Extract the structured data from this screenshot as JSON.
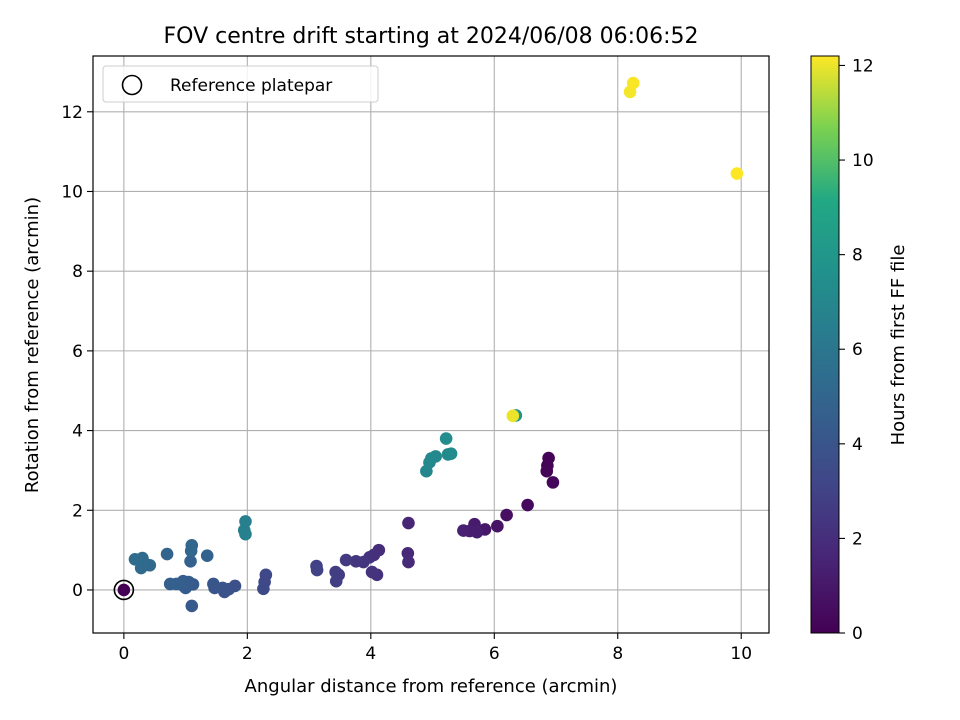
{
  "chart_data": {
    "type": "scatter",
    "title": "FOV centre drift starting at 2024/06/08 06:06:52",
    "xlabel": "Angular distance from reference (arcmin)",
    "ylabel": "Rotation from reference (arcmin)",
    "colorbar_label": "Hours from first FF file",
    "colormap": "viridis",
    "xlim": [
      -0.5,
      10.45
    ],
    "ylim": [
      -1.08,
      13.4
    ],
    "clim": [
      0,
      12.2
    ],
    "xticks": [
      0,
      2,
      4,
      6,
      8,
      10
    ],
    "yticks": [
      0,
      2,
      4,
      6,
      8,
      10,
      12
    ],
    "colorbar_ticks": [
      0,
      2,
      4,
      6,
      8,
      10,
      12
    ],
    "grid": true,
    "legend": {
      "location": "upper left",
      "entries": [
        "Reference platepar"
      ]
    },
    "reference_point": {
      "x": 0,
      "y": 0,
      "label": "Reference platepar"
    },
    "points": [
      {
        "x": 6.88,
        "y": 3.31,
        "c": 0.1
      },
      {
        "x": 6.86,
        "y": 3.12,
        "c": 0.15
      },
      {
        "x": 6.85,
        "y": 2.98,
        "c": 0.2
      },
      {
        "x": 6.95,
        "y": 2.7,
        "c": 0.25
      },
      {
        "x": 6.54,
        "y": 2.13,
        "c": 0.4
      },
      {
        "x": 6.2,
        "y": 1.88,
        "c": 0.6
      },
      {
        "x": 6.05,
        "y": 1.6,
        "c": 0.8
      },
      {
        "x": 5.85,
        "y": 1.52,
        "c": 1.0
      },
      {
        "x": 5.68,
        "y": 1.65,
        "c": 1.1
      },
      {
        "x": 5.72,
        "y": 1.45,
        "c": 1.2
      },
      {
        "x": 5.6,
        "y": 1.48,
        "c": 1.3
      },
      {
        "x": 5.5,
        "y": 1.49,
        "c": 1.4
      },
      {
        "x": 4.61,
        "y": 1.68,
        "c": 1.6
      },
      {
        "x": 4.6,
        "y": 0.92,
        "c": 1.75
      },
      {
        "x": 4.61,
        "y": 0.7,
        "c": 1.8
      },
      {
        "x": 4.13,
        "y": 1.0,
        "c": 1.95
      },
      {
        "x": 4.05,
        "y": 0.88,
        "c": 2.05
      },
      {
        "x": 3.98,
        "y": 0.82,
        "c": 2.15
      },
      {
        "x": 4.1,
        "y": 0.38,
        "c": 2.2
      },
      {
        "x": 4.02,
        "y": 0.45,
        "c": 2.25
      },
      {
        "x": 3.88,
        "y": 0.7,
        "c": 2.35
      },
      {
        "x": 3.76,
        "y": 0.72,
        "c": 2.45
      },
      {
        "x": 3.6,
        "y": 0.75,
        "c": 2.55
      },
      {
        "x": 3.48,
        "y": 0.38,
        "c": 2.65
      },
      {
        "x": 3.43,
        "y": 0.45,
        "c": 2.7
      },
      {
        "x": 3.44,
        "y": 0.22,
        "c": 2.75
      },
      {
        "x": 3.12,
        "y": 0.6,
        "c": 2.95
      },
      {
        "x": 3.13,
        "y": 0.5,
        "c": 3.0
      },
      {
        "x": 2.3,
        "y": 0.38,
        "c": 3.3
      },
      {
        "x": 2.28,
        "y": 0.2,
        "c": 3.35
      },
      {
        "x": 2.26,
        "y": 0.03,
        "c": 3.4
      },
      {
        "x": 1.8,
        "y": 0.1,
        "c": 3.7
      },
      {
        "x": 1.7,
        "y": 0.02,
        "c": 3.8
      },
      {
        "x": 1.63,
        "y": -0.05,
        "c": 3.85
      },
      {
        "x": 1.6,
        "y": 0.05,
        "c": 3.9
      },
      {
        "x": 1.47,
        "y": 0.05,
        "c": 4.0
      },
      {
        "x": 1.45,
        "y": 0.15,
        "c": 4.05
      },
      {
        "x": 1.1,
        "y": -0.4,
        "c": 4.25
      },
      {
        "x": 1.12,
        "y": 0.14,
        "c": 4.3
      },
      {
        "x": 1.05,
        "y": 0.2,
        "c": 4.35
      },
      {
        "x": 1.0,
        "y": 0.05,
        "c": 4.4
      },
      {
        "x": 0.95,
        "y": 0.12,
        "c": 4.45
      },
      {
        "x": 0.96,
        "y": 0.22,
        "c": 4.5
      },
      {
        "x": 0.85,
        "y": 0.15,
        "c": 4.55
      },
      {
        "x": 0.75,
        "y": 0.15,
        "c": 4.6
      },
      {
        "x": 1.08,
        "y": 0.72,
        "c": 4.7
      },
      {
        "x": 1.35,
        "y": 0.86,
        "c": 4.8
      },
      {
        "x": 0.7,
        "y": 0.9,
        "c": 4.9
      },
      {
        "x": 1.1,
        "y": 1.12,
        "c": 5.0
      },
      {
        "x": 1.09,
        "y": 0.98,
        "c": 5.05
      },
      {
        "x": 0.42,
        "y": 0.62,
        "c": 5.15
      },
      {
        "x": 0.35,
        "y": 0.65,
        "c": 5.2
      },
      {
        "x": 0.3,
        "y": 0.8,
        "c": 5.25
      },
      {
        "x": 0.28,
        "y": 0.55,
        "c": 5.3
      },
      {
        "x": 0.18,
        "y": 0.77,
        "c": 5.35
      },
      {
        "x": 1.97,
        "y": 1.72,
        "c": 6.5
      },
      {
        "x": 1.95,
        "y": 1.5,
        "c": 6.55
      },
      {
        "x": 1.97,
        "y": 1.4,
        "c": 6.6
      },
      {
        "x": 4.9,
        "y": 2.98,
        "c": 7.0
      },
      {
        "x": 4.95,
        "y": 3.2,
        "c": 7.05
      },
      {
        "x": 4.98,
        "y": 3.3,
        "c": 7.1
      },
      {
        "x": 5.05,
        "y": 3.35,
        "c": 7.15
      },
      {
        "x": 5.25,
        "y": 3.4,
        "c": 7.2
      },
      {
        "x": 5.3,
        "y": 3.42,
        "c": 7.25
      },
      {
        "x": 5.22,
        "y": 3.8,
        "c": 7.3
      },
      {
        "x": 6.35,
        "y": 4.38,
        "c": 7.8
      },
      {
        "x": 6.3,
        "y": 4.37,
        "c": 12.0
      },
      {
        "x": 8.2,
        "y": 12.5,
        "c": 12.1
      },
      {
        "x": 8.25,
        "y": 12.72,
        "c": 12.15
      },
      {
        "x": 9.93,
        "y": 10.45,
        "c": 12.2
      }
    ]
  }
}
